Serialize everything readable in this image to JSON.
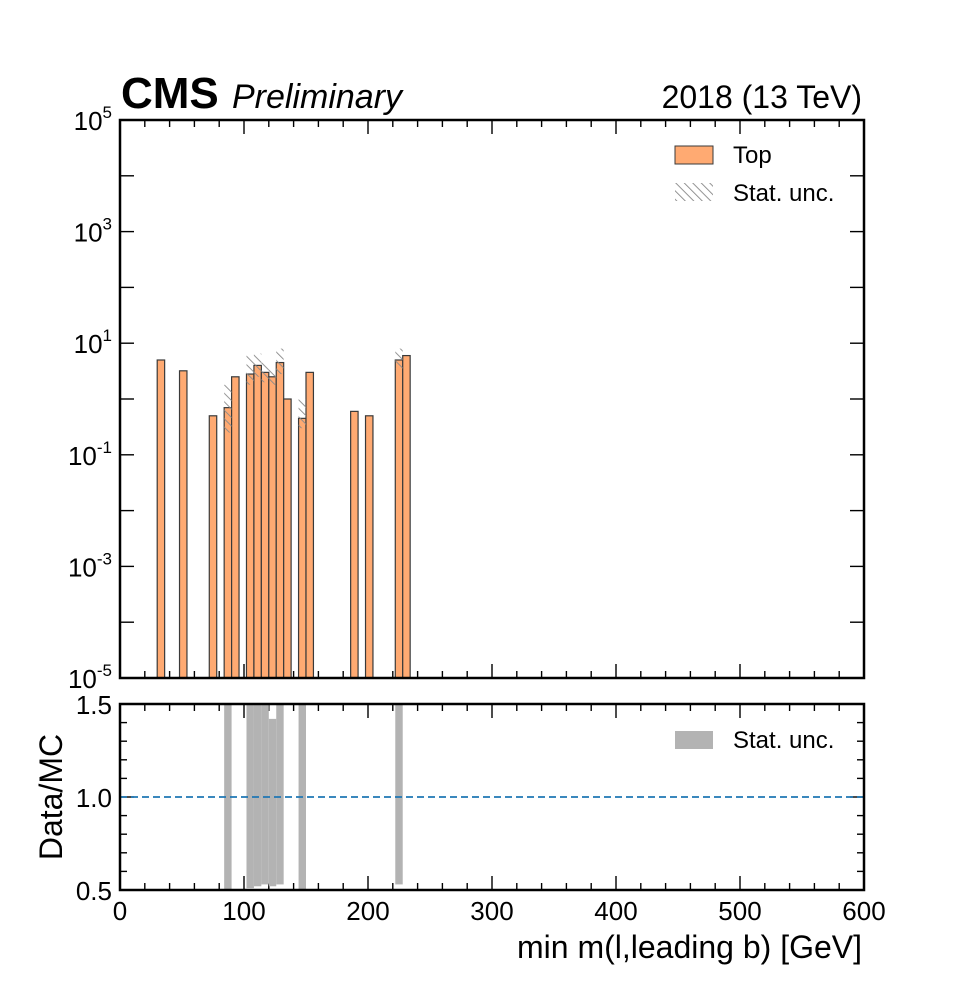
{
  "header": {
    "experiment": "CMS",
    "status": "Preliminary",
    "lumi_label": "2018 (13 TeV)"
  },
  "chart_data": [
    {
      "type": "bar",
      "panel": "main",
      "histtype": "step-filled histogram",
      "xlabel": "min m(l,leading b) [GeV]",
      "ylabel": "",
      "xlim": [
        0,
        600
      ],
      "ylim": [
        1e-05,
        100000
      ],
      "yscale": "log",
      "bin_width": 6,
      "x_ticks": [
        0,
        100,
        200,
        300,
        400,
        500,
        600
      ],
      "y_ticks": [
        {
          "base": "10",
          "exp": "-5",
          "value": 1e-05
        },
        {
          "base": "10",
          "exp": "-3",
          "value": 0.001
        },
        {
          "base": "10",
          "exp": "-1",
          "value": 0.1
        },
        {
          "base": "10",
          "exp": "1",
          "value": 10
        },
        {
          "base": "10",
          "exp": "3",
          "value": 1000
        },
        {
          "base": "10",
          "exp": "5",
          "value": 100000
        }
      ],
      "legend_position": "top-right",
      "legend": [
        {
          "label": "Top",
          "kind": "fill"
        },
        {
          "label": "Stat. unc.",
          "kind": "hatch"
        }
      ],
      "series": [
        {
          "name": "Top",
          "color": "#ffaa72",
          "edge_color": "#3a3a3a",
          "bins": [
            {
              "x0": 30,
              "x1": 36,
              "y": 5.0,
              "unc_low": 5.0,
              "unc_high": 5.0
            },
            {
              "x0": 48,
              "x1": 54,
              "y": 3.2,
              "unc_low": 3.2,
              "unc_high": 3.2
            },
            {
              "x0": 72,
              "x1": 78,
              "y": 0.5,
              "unc_low": 0.5,
              "unc_high": 0.5
            },
            {
              "x0": 84,
              "x1": 90,
              "y": 0.7,
              "unc_low": 0.25,
              "unc_high": 1.8
            },
            {
              "x0": 90,
              "x1": 96,
              "y": 2.5,
              "unc_low": 2.5,
              "unc_high": 2.5
            },
            {
              "x0": 102,
              "x1": 108,
              "y": 2.8,
              "unc_low": 1.8,
              "unc_high": 6.0
            },
            {
              "x0": 108,
              "x1": 114,
              "y": 4.0,
              "unc_low": 2.5,
              "unc_high": 6.5
            },
            {
              "x0": 114,
              "x1": 120,
              "y": 3.0,
              "unc_low": 2.0,
              "unc_high": 4.5
            },
            {
              "x0": 120,
              "x1": 126,
              "y": 2.5,
              "unc_low": 1.8,
              "unc_high": 3.5
            },
            {
              "x0": 126,
              "x1": 132,
              "y": 4.5,
              "unc_low": 2.8,
              "unc_high": 8.0
            },
            {
              "x0": 132,
              "x1": 138,
              "y": 1.0,
              "unc_low": 1.0,
              "unc_high": 1.0
            },
            {
              "x0": 144,
              "x1": 150,
              "y": 0.45,
              "unc_low": 0.3,
              "unc_high": 1.0
            },
            {
              "x0": 150,
              "x1": 156,
              "y": 3.0,
              "unc_low": 3.0,
              "unc_high": 3.0
            },
            {
              "x0": 186,
              "x1": 192,
              "y": 0.6,
              "unc_low": 0.6,
              "unc_high": 0.6
            },
            {
              "x0": 198,
              "x1": 204,
              "y": 0.5,
              "unc_low": 0.5,
              "unc_high": 0.5
            },
            {
              "x0": 222,
              "x1": 228,
              "y": 5.0,
              "unc_low": 3.5,
              "unc_high": 8.0
            },
            {
              "x0": 228,
              "x1": 234,
              "y": 6.0,
              "unc_low": 6.0,
              "unc_high": 6.0
            }
          ]
        }
      ]
    },
    {
      "type": "bar",
      "panel": "ratio",
      "xlabel": "min m(l,leading b) [GeV]",
      "ylabel": "Data/MC",
      "xlim": [
        0,
        600
      ],
      "ylim": [
        0.5,
        1.5
      ],
      "x_ticks": [
        0,
        100,
        200,
        300,
        400,
        500,
        600
      ],
      "y_ticks": [
        "0.5",
        "1.0",
        "1.5"
      ],
      "reference_line": 1.0,
      "reference_line_color": "#1f77b4",
      "legend_position": "top-right",
      "legend": [
        {
          "label": "Stat. unc.",
          "kind": "fill"
        }
      ],
      "series": [
        {
          "name": "Stat. unc.",
          "color": "#b3b3b3",
          "bands": [
            {
              "x0": 84,
              "x1": 90,
              "low": 0.5,
              "high": 1.5
            },
            {
              "x0": 102,
              "x1": 108,
              "low": 0.51,
              "high": 1.5
            },
            {
              "x0": 108,
              "x1": 114,
              "low": 0.52,
              "high": 1.5
            },
            {
              "x0": 114,
              "x1": 120,
              "low": 0.53,
              "high": 1.5
            },
            {
              "x0": 120,
              "x1": 126,
              "low": 0.52,
              "high": 1.42
            },
            {
              "x0": 126,
              "x1": 132,
              "low": 0.53,
              "high": 1.5
            },
            {
              "x0": 144,
              "x1": 150,
              "low": 0.5,
              "high": 1.5
            },
            {
              "x0": 222,
              "x1": 228,
              "low": 0.53,
              "high": 1.5
            }
          ]
        }
      ]
    }
  ]
}
